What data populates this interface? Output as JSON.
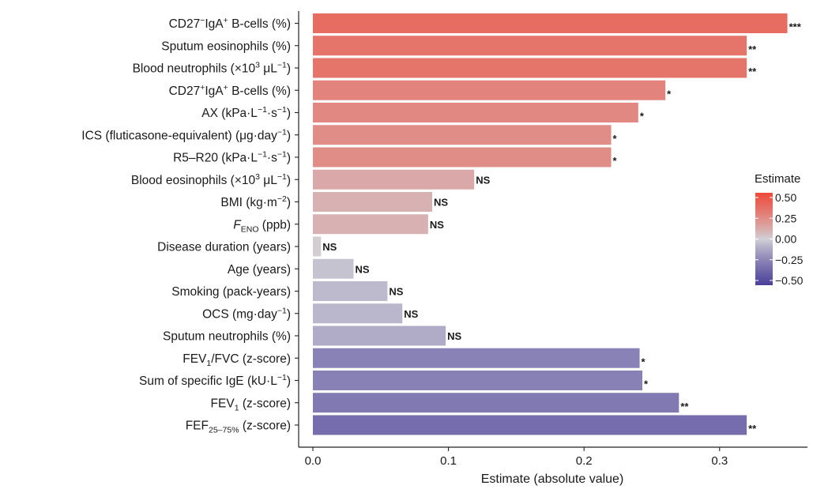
{
  "chart_data": {
    "type": "bar",
    "orientation": "horizontal",
    "xlabel": "Estimate (absolute value)",
    "xlim": [
      -0.017,
      0.35
    ],
    "xticks": [
      "0.0",
      "0.1",
      "0.2",
      "0.3"
    ],
    "xtick_values": [
      0,
      0.1,
      0.2,
      0.3
    ],
    "grid": false,
    "bars": [
      {
        "label_parts": [
          [
            "CD27",
            ""
          ],
          [
            "−",
            "sup"
          ],
          [
            "IgA",
            ""
          ],
          [
            "+",
            "sup"
          ],
          [
            " B-cells (%)",
            ""
          ]
        ],
        "value": 0.35,
        "estimate": 0.35,
        "sig": "***"
      },
      {
        "label_parts": [
          [
            "Sputum eosinophils (%)",
            ""
          ]
        ],
        "value": 0.32,
        "estimate": 0.32,
        "sig": "**"
      },
      {
        "label_parts": [
          [
            "Blood neutrophils (×10",
            ""
          ],
          [
            "3",
            "sup"
          ],
          [
            " μL",
            ""
          ],
          [
            "−1",
            "sup"
          ],
          [
            ")",
            ""
          ]
        ],
        "value": 0.32,
        "estimate": 0.32,
        "sig": "**"
      },
      {
        "label_parts": [
          [
            "CD27",
            ""
          ],
          [
            "+",
            "sup"
          ],
          [
            "IgA",
            ""
          ],
          [
            "+",
            "sup"
          ],
          [
            " B-cells (%)",
            ""
          ]
        ],
        "value": 0.26,
        "estimate": 0.26,
        "sig": "*"
      },
      {
        "label_parts": [
          [
            "AX (kPa·L",
            ""
          ],
          [
            "−1",
            "sup"
          ],
          [
            "·s",
            ""
          ],
          [
            "−1",
            "sup"
          ],
          [
            ")",
            ""
          ]
        ],
        "value": 0.24,
        "estimate": 0.24,
        "sig": "*"
      },
      {
        "label_parts": [
          [
            "ICS (fluticasone-equivalent) (μg·day",
            ""
          ],
          [
            "−1",
            "sup"
          ],
          [
            ")",
            ""
          ]
        ],
        "value": 0.22,
        "estimate": 0.22,
        "sig": "*"
      },
      {
        "label_parts": [
          [
            "R5–R20 (kPa·L",
            ""
          ],
          [
            "−1",
            "sup"
          ],
          [
            "·s",
            ""
          ],
          [
            "−1",
            "sup"
          ],
          [
            ")",
            ""
          ]
        ],
        "value": 0.22,
        "estimate": 0.22,
        "sig": "*"
      },
      {
        "label_parts": [
          [
            "Blood eosinophils (×10",
            ""
          ],
          [
            "3",
            "sup"
          ],
          [
            " μL",
            ""
          ],
          [
            "−1",
            "sup"
          ],
          [
            ")",
            ""
          ]
        ],
        "value": 0.119,
        "estimate": 0.119,
        "sig": "NS"
      },
      {
        "label_parts": [
          [
            "BMI (kg·m",
            ""
          ],
          [
            "−2",
            "sup"
          ],
          [
            ")",
            ""
          ]
        ],
        "value": 0.088,
        "estimate": 0.088,
        "sig": "NS"
      },
      {
        "label_parts": [
          [
            "F",
            "italic"
          ],
          [
            "ENO",
            "sub"
          ],
          [
            " (ppb)",
            ""
          ]
        ],
        "value": 0.085,
        "estimate": 0.085,
        "sig": "NS"
      },
      {
        "label_parts": [
          [
            "Disease duration (years)",
            ""
          ]
        ],
        "value": 0.006,
        "estimate": 0.006,
        "sig": "NS"
      },
      {
        "label_parts": [
          [
            "Age (years)",
            ""
          ]
        ],
        "value": 0.03,
        "estimate": -0.03,
        "sig": "NS"
      },
      {
        "label_parts": [
          [
            "Smoking (pack-years)",
            ""
          ]
        ],
        "value": 0.055,
        "estimate": -0.055,
        "sig": "NS"
      },
      {
        "label_parts": [
          [
            "OCS (mg·day",
            ""
          ],
          [
            "−1",
            "sup"
          ],
          [
            ")",
            ""
          ]
        ],
        "value": 0.066,
        "estimate": -0.066,
        "sig": "NS"
      },
      {
        "label_parts": [
          [
            "Sputum neutrophils (%)",
            ""
          ]
        ],
        "value": 0.098,
        "estimate": -0.098,
        "sig": "NS"
      },
      {
        "label_parts": [
          [
            "FEV",
            ""
          ],
          [
            "1",
            "sub"
          ],
          [
            "/FVC (z-score)",
            ""
          ]
        ],
        "value": 0.241,
        "estimate": -0.241,
        "sig": "*"
      },
      {
        "label_parts": [
          [
            "Sum of specific IgE (kU·L",
            ""
          ],
          [
            "−1",
            "sup"
          ],
          [
            ")",
            ""
          ]
        ],
        "value": 0.243,
        "estimate": -0.243,
        "sig": "*"
      },
      {
        "label_parts": [
          [
            "FEV",
            ""
          ],
          [
            "1",
            "sub"
          ],
          [
            " (z-score)",
            ""
          ]
        ],
        "value": 0.27,
        "estimate": -0.27,
        "sig": "**"
      },
      {
        "label_parts": [
          [
            "FEF",
            ""
          ],
          [
            "25–75%",
            "sub"
          ],
          [
            " (z-score)",
            ""
          ]
        ],
        "value": 0.32,
        "estimate": -0.32,
        "sig": "**"
      }
    ],
    "legend": {
      "title": "Estimate",
      "position": "right",
      "ticks": [
        "0.50",
        "0.25",
        "0.00",
        "−0.25",
        "−0.50"
      ],
      "tick_values": [
        0.5,
        0.25,
        0,
        -0.25,
        -0.5
      ],
      "colors": {
        "high": "#ee4a3a",
        "mid": "#d2d0d6",
        "low": "#4a3f9a"
      }
    }
  }
}
